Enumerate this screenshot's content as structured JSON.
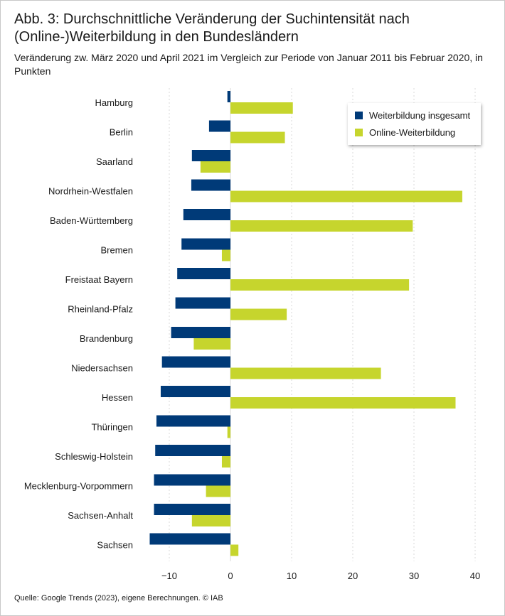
{
  "title": "Abb. 3: Durchschnittliche Veränderung der Suchintensität nach (Online-)Weiterbildung in den Bundesländern",
  "subtitle": "Veränderung zw. März 2020 und April 2021 im Vergleich zur Periode von Januar 2011 bis Februar 2020, in Punkten",
  "source": "Quelle: Google Trends (2023), eigene Berechnungen.  © IAB",
  "colors": {
    "weiterbildung": "#003a78",
    "online": "#c6d52d",
    "grid": "#d9d9d9"
  },
  "chart_data": {
    "type": "bar",
    "orientation": "horizontal",
    "title": "Abb. 3: Durchschnittliche Veränderung der Suchintensität nach (Online-)Weiterbildung in den Bundesländern",
    "xlabel": "",
    "ylabel": "",
    "xlim": [
      -14,
      41
    ],
    "xticks": [
      -10,
      0,
      10,
      20,
      30,
      40
    ],
    "xtick_labels": [
      "−10",
      "0",
      "10",
      "20",
      "30",
      "40"
    ],
    "grid": true,
    "legend_position": "top-right",
    "categories": [
      "Hamburg",
      "Berlin",
      "Saarland",
      "Nordrhein-Westfalen",
      "Baden-Württemberg",
      "Bremen",
      "Freistaat Bayern",
      "Rheinland-Pfalz",
      "Brandenburg",
      "Niedersachsen",
      "Hessen",
      "Thüringen",
      "Schleswig-Holstein",
      "Mecklenburg-Vorpommern",
      "Sachsen-Anhalt",
      "Sachsen"
    ],
    "series": [
      {
        "name": "Weiterbildung insgesamt",
        "values": [
          -0.5,
          -3.5,
          -6.3,
          -6.4,
          -7.7,
          -8.0,
          -8.7,
          -9.0,
          -9.7,
          -11.2,
          -11.4,
          -12.1,
          -12.3,
          -12.5,
          -12.5,
          -13.2
        ]
      },
      {
        "name": "Online-Weiterbildung",
        "values": [
          10.2,
          8.9,
          -4.9,
          37.9,
          29.8,
          -1.4,
          29.2,
          9.2,
          -6.0,
          24.6,
          36.8,
          -0.5,
          -1.4,
          -4.0,
          -6.3,
          1.3
        ]
      }
    ]
  }
}
